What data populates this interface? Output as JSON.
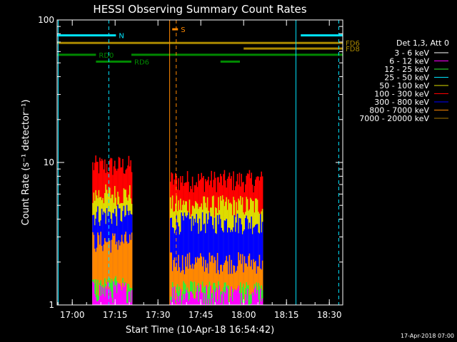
{
  "chart_data": {
    "type": "line",
    "title": "HESSI Observing Summary Count Rates",
    "xlabel": "Start Time (10-Apr-18 16:54:42)",
    "ylabel": "Count Rate (s⁻¹ detector⁻¹)",
    "x_start": "16:54:42",
    "xlim_minutes": [
      0,
      100
    ],
    "ylim": [
      1,
      100
    ],
    "yscale": "log",
    "x_ticks": [
      {
        "label": "17:00",
        "t": 5.3
      },
      {
        "label": "17:15",
        "t": 20.3
      },
      {
        "label": "17:30",
        "t": 35.3
      },
      {
        "label": "17:45",
        "t": 50.3
      },
      {
        "label": "18:00",
        "t": 65.3
      },
      {
        "label": "18:15",
        "t": 80.3
      },
      {
        "label": "18:30",
        "t": 95.3
      }
    ],
    "y_ticks": [
      {
        "label": "1",
        "v": 1
      },
      {
        "label": "10",
        "v": 10
      },
      {
        "label": "100",
        "v": 100
      }
    ],
    "legend_title": "Det 1,3, Att 0",
    "legend_position": "right",
    "series": [
      {
        "name": "3 - 6 keV",
        "color": "#000000",
        "segments": []
      },
      {
        "name": "6 - 12 keV",
        "color": "#ff00ff",
        "segments": [
          {
            "t0": 12.3,
            "t1": 26.0,
            "level": 1.25
          },
          {
            "t0": 39.5,
            "t1": 71.8,
            "level": 1.2
          }
        ]
      },
      {
        "name": "12 - 25 keV",
        "color": "#33ee33",
        "segments": [
          {
            "t0": 12.3,
            "t1": 26.0,
            "level": 1.35
          },
          {
            "t0": 39.5,
            "t1": 71.8,
            "level": 1.25
          }
        ]
      },
      {
        "name": "25 - 50 keV",
        "color": "#00e5ff",
        "segments": []
      },
      {
        "name": "50 - 100 keV",
        "color": "#dddd00",
        "segments": [
          {
            "t0": 12.3,
            "t1": 26.0,
            "level": 6.0
          },
          {
            "t0": 39.5,
            "t1": 71.8,
            "level": 5.0
          }
        ]
      },
      {
        "name": "100 - 300 keV",
        "color": "#ff0000",
        "segments": [
          {
            "t0": 12.3,
            "t1": 26.0,
            "level": 9.5
          },
          {
            "t0": 39.5,
            "t1": 71.8,
            "level": 7.5
          }
        ]
      },
      {
        "name": "300 - 800 keV",
        "color": "#0000ff",
        "segments": [
          {
            "t0": 12.3,
            "t1": 26.0,
            "level": 4.3
          },
          {
            "t0": 39.5,
            "t1": 71.8,
            "level": 3.8
          }
        ]
      },
      {
        "name": "800 - 7000 keV",
        "color": "#ff8800",
        "segments": [
          {
            "t0": 12.3,
            "t1": 26.0,
            "level": 2.8
          },
          {
            "t0": 39.5,
            "t1": 71.8,
            "level": 2.0
          }
        ]
      },
      {
        "name": "7000 - 20000 keV",
        "color": "#aa7700",
        "segments": []
      }
    ],
    "flag_bars": [
      {
        "label": "N",
        "color": "#00e5ff",
        "t0": 0,
        "t1": 20.6,
        "y": 78
      },
      {
        "label": "",
        "color": "#00e5ff",
        "t0": 85.3,
        "t1": 100,
        "y": 78
      },
      {
        "label": "S",
        "color": "#ff8800",
        "t0": 40.3,
        "t1": 42.3,
        "y": 86
      },
      {
        "label": "FD6",
        "color": "#aa8800",
        "t0": 0,
        "t1": 100,
        "y": 69
      },
      {
        "label": "FD8",
        "color": "#aa8800",
        "t0": 65.3,
        "t1": 100,
        "y": 63
      },
      {
        "label": "RD0",
        "color": "#008800",
        "t0": 0,
        "t1": 13.6,
        "y": 57
      },
      {
        "label": "",
        "color": "#008800",
        "t0": 26.0,
        "t1": 100,
        "y": 57
      },
      {
        "label": "RD6",
        "color": "#008800",
        "t0": 13.6,
        "t1": 26.0,
        "y": 51
      },
      {
        "label": "",
        "color": "#008800",
        "t0": 57.2,
        "t1": 64.0,
        "y": 51
      }
    ],
    "vlines": [
      {
        "t": 0.4,
        "color": "#00e5ff",
        "style": "solid"
      },
      {
        "t": 18.1,
        "color": "#00e5ff",
        "style": "dashed"
      },
      {
        "t": 83.6,
        "color": "#00e5ff",
        "style": "solid"
      },
      {
        "t": 98.6,
        "color": "#00e5ff",
        "style": "dashed"
      },
      {
        "t": 39.4,
        "color": "#ff8800",
        "style": "solid"
      },
      {
        "t": 41.7,
        "color": "#ff8800",
        "style": "dashed"
      }
    ],
    "footer_stamp": "17-Apr-2018 07:00"
  }
}
